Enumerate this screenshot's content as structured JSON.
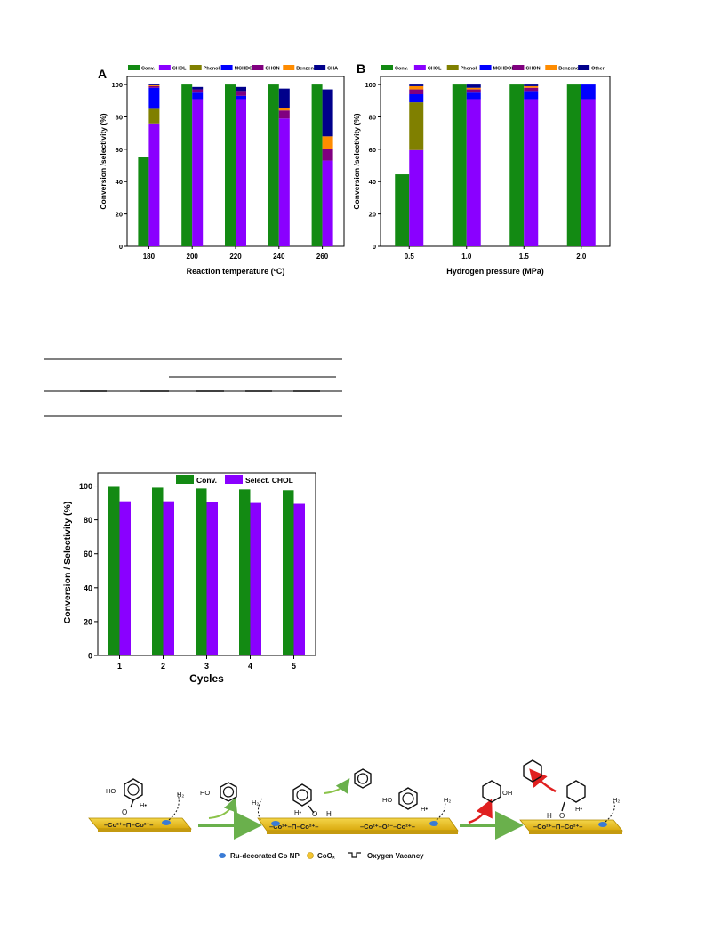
{
  "colors": {
    "Conv.": "#138A13",
    "CHOL": "#8A00FF",
    "Phenol": "#808000",
    "MCHDOL": "#0000FF",
    "CHON": "#800080",
    "Benzene": "#FF8C00",
    "CHA": "#00008B",
    "Other": "#00008B",
    "axis": "#000000"
  },
  "chart_data": [
    {
      "type": "bar",
      "panel_label": "A",
      "xlabel": "Reaction temperature  (ºC)",
      "ylabel": "Conversion /selectivity (%)",
      "categories": [
        "180",
        "200",
        "220",
        "240",
        "260"
      ],
      "ylim": [
        0,
        105
      ],
      "yticks": [
        "0",
        "20",
        "40",
        "60",
        "80",
        "100"
      ],
      "legend": [
        "Conv.",
        "CHOL",
        "Phenol",
        "MCHDOL",
        "CHON",
        "Benzene",
        "CHA"
      ],
      "legend_placement": "top",
      "conversion": {
        "name": "Conv.",
        "values": [
          55,
          100,
          100,
          100,
          100
        ]
      },
      "selectivity_stacked": [
        {
          "name": "CHOL",
          "values": [
            76,
            91,
            91,
            79,
            53
          ]
        },
        {
          "name": "Phenol",
          "values": [
            9,
            0,
            0,
            0,
            0
          ]
        },
        {
          "name": "MCHDOL",
          "values": [
            13,
            4,
            2,
            0,
            0
          ]
        },
        {
          "name": "CHON",
          "values": [
            1,
            2,
            3,
            5,
            7
          ]
        },
        {
          "name": "Benzene",
          "values": [
            0.5,
            0,
            0,
            1.5,
            8
          ]
        },
        {
          "name": "CHA",
          "values": [
            0.5,
            1.5,
            2.5,
            12,
            29
          ]
        }
      ]
    },
    {
      "type": "bar",
      "panel_label": "B",
      "xlabel": "Hydrogen pressure (MPa)",
      "ylabel": "Conversion /selectivity (%)",
      "categories": [
        "0.5",
        "1.0",
        "1.5",
        "2.0"
      ],
      "ylim": [
        0,
        105
      ],
      "yticks": [
        "0",
        "20",
        "40",
        "60",
        "80",
        "100"
      ],
      "legend": [
        "Conv.",
        "CHOL",
        "Phenol",
        "MCHDOL",
        "CHON",
        "Benzene",
        "Other"
      ],
      "legend_placement": "top",
      "conversion": {
        "name": "Conv.",
        "values": [
          44.5,
          100,
          100,
          100
        ]
      },
      "selectivity_stacked": [
        {
          "name": "CHOL",
          "values": [
            59.5,
            91,
            91,
            91
          ]
        },
        {
          "name": "Phenol",
          "values": [
            29.5,
            0,
            0,
            0
          ]
        },
        {
          "name": "MCHDOL",
          "values": [
            5,
            4,
            5,
            9
          ]
        },
        {
          "name": "CHON",
          "values": [
            3,
            2,
            2,
            0
          ]
        },
        {
          "name": "Benzene",
          "values": [
            2,
            1,
            1,
            0
          ]
        },
        {
          "name": "Other",
          "values": [
            1,
            2,
            1,
            0
          ]
        }
      ]
    },
    {
      "type": "bar",
      "xlabel": "Cycles",
      "ylabel": "Conversion / Selectivity (%)",
      "categories": [
        "1",
        "2",
        "3",
        "4",
        "5"
      ],
      "ylim": [
        0,
        105
      ],
      "yticks": [
        "0",
        "20",
        "40",
        "60",
        "80",
        "100"
      ],
      "legend_placement": "top",
      "series": [
        {
          "name": "Conv.",
          "values": [
            99.5,
            99,
            98.5,
            98,
            97.5
          ]
        },
        {
          "name": "Select. CHOL",
          "values": [
            91,
            91,
            90.5,
            90,
            89.5
          ]
        }
      ]
    }
  ],
  "scheme": {
    "surface_a": "–Co²⁺–⊓–Co²⁺–",
    "surface_b1": "–Co²⁺–⊓–Co²⁺–",
    "surface_b2": "–Co²⁺–O²⁻–Co²⁺–",
    "surface_c": "–Co²⁺–⊓–Co²⁺–",
    "h2": "H₂",
    "h_dot": "H•",
    "ho": "HO",
    "oh": "OH",
    "o": "O",
    "h": "H",
    "legend_ru": "Ru-decorated Co NP",
    "legend_coox": "CoOₓ",
    "legend_vacancy": "Oxygen Vacancy"
  }
}
